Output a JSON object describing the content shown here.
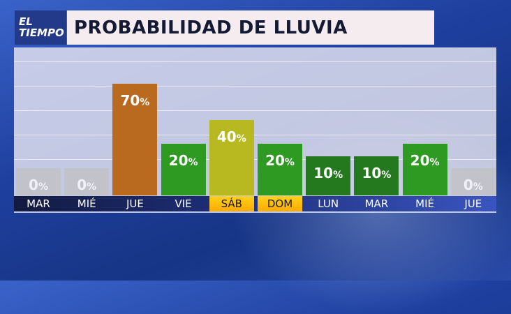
{
  "logo": {
    "line1": "EL",
    "line2": "TIEMPO"
  },
  "chart_data": {
    "type": "bar",
    "title": "PROBABILIDAD DE LLUVIA",
    "categories": [
      "MAR",
      "MIÉ",
      "JUE",
      "VIE",
      "SÁB",
      "DOM",
      "LUN",
      "MAR",
      "MIÉ",
      "JUE"
    ],
    "values": [
      0,
      0,
      70,
      20,
      40,
      20,
      10,
      10,
      20,
      0
    ],
    "unit": "%",
    "highlighted": [
      "SÁB",
      "DOM"
    ],
    "colors": [
      "#c2c2c2",
      "#c2c2c2",
      "#b96a1e",
      "#2e9a22",
      "#b8b820",
      "#2e9a22",
      "#24791f",
      "#24791f",
      "#2e9a22",
      "#c2c2c2"
    ],
    "highlight_color": "#ffc000",
    "ylim": [
      0,
      100
    ]
  }
}
